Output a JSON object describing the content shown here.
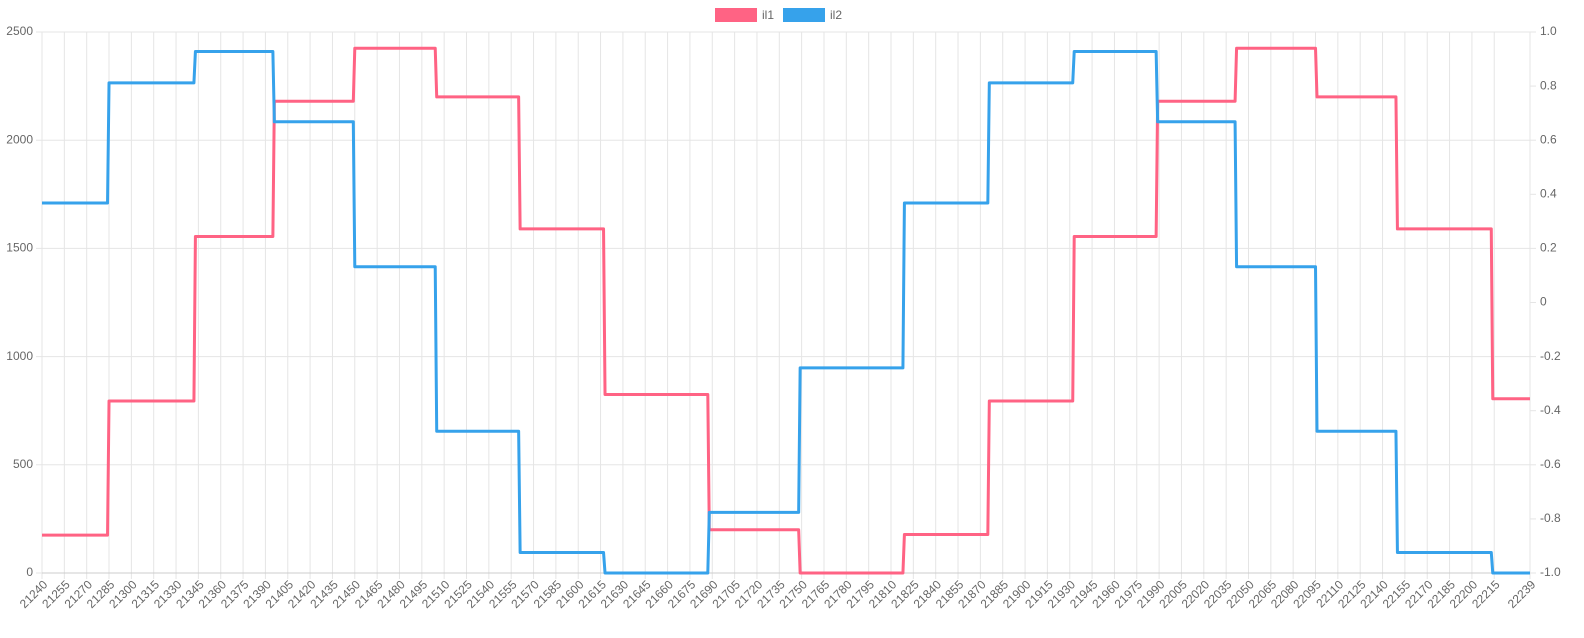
{
  "chart_data": {
    "type": "line",
    "x": [
      21240,
      21284,
      21285,
      21342,
      21343,
      21395,
      21396,
      21449,
      21450,
      21504,
      21505,
      21560,
      21561,
      21617,
      21618,
      21687,
      21688,
      21748,
      21749,
      21818,
      21819,
      21875,
      21876,
      21932,
      21933,
      21988,
      21989,
      22041,
      22042,
      22095,
      22096,
      22149,
      22150,
      22213,
      22214,
      22239
    ],
    "series": [
      {
        "name": "il1",
        "color": "#ff6384",
        "values": [
          175,
          175,
          795,
          795,
          1555,
          1555,
          2180,
          2180,
          2425,
          2425,
          2200,
          2200,
          1590,
          1590,
          825,
          825,
          200,
          200,
          0,
          0,
          178,
          178,
          795,
          795,
          1555,
          1555,
          2180,
          2180,
          2425,
          2425,
          2200,
          2200,
          1590,
          1590,
          805,
          805
        ]
      },
      {
        "name": "il2",
        "color": "#36a2eb",
        "values": [
          1710,
          1710,
          2265,
          2265,
          2410,
          2410,
          2085,
          2085,
          1415,
          1415,
          655,
          655,
          95,
          95,
          0,
          0,
          280,
          280,
          948,
          948,
          1710,
          1710,
          2265,
          2265,
          2410,
          2410,
          2085,
          2085,
          1415,
          1415,
          655,
          655,
          95,
          95,
          0,
          0
        ]
      }
    ],
    "xlim": [
      21240,
      22239
    ],
    "xticks": [
      21240,
      21255,
      21270,
      21285,
      21300,
      21315,
      21330,
      21345,
      21360,
      21375,
      21390,
      21405,
      21420,
      21435,
      21450,
      21465,
      21480,
      21495,
      21510,
      21525,
      21540,
      21555,
      21570,
      21585,
      21600,
      21615,
      21630,
      21645,
      21660,
      21675,
      21690,
      21705,
      21720,
      21735,
      21750,
      21765,
      21780,
      21795,
      21810,
      21825,
      21840,
      21855,
      21870,
      21885,
      21900,
      21915,
      21930,
      21945,
      21960,
      21975,
      21990,
      22005,
      22020,
      22035,
      22050,
      22065,
      22080,
      22095,
      22110,
      22125,
      22140,
      22155,
      22170,
      22185,
      22200,
      22215,
      22239
    ],
    "ylim": [
      0,
      2500
    ],
    "yticks": [
      0,
      500,
      1000,
      1500,
      2000,
      2500
    ],
    "y2lim": [
      -1,
      1
    ],
    "y2ticks": [
      {
        "value": -1,
        "label": "-1.0"
      },
      -0.8,
      -0.6,
      -0.4,
      -0.2,
      0,
      0.2,
      0.4,
      0.6,
      0.8,
      {
        "value": 1,
        "label": "1.0"
      }
    ],
    "grid": true,
    "legend": "top"
  }
}
